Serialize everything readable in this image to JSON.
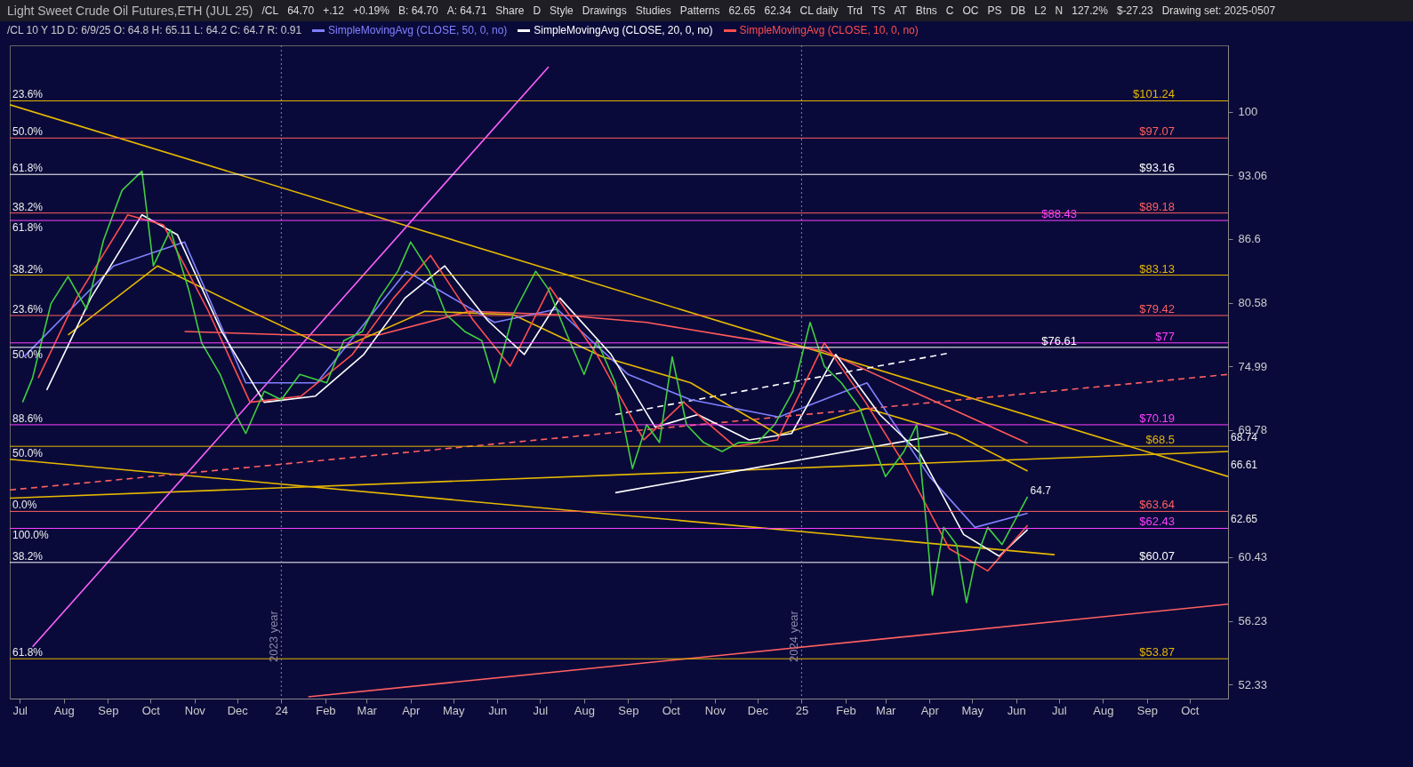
{
  "chart_data": {
    "type": "line",
    "title": "Light Sweet Crude Oil Futures,ETH (JUL 25)",
    "subtitle": "/CL 10 Y 1D D: 6/9/25 O: 64.8 H: 65.11 L: 64.2 C: 64.7 R: 0.91",
    "annotations": [
      "/CL",
      "64.70",
      "+.12",
      "+0.19%",
      "B: 64.70",
      "A: 64.71",
      "Share",
      "D",
      "Style",
      "Drawings",
      "Studies",
      "Patterns",
      "62.65",
      "62.34",
      "CL daily",
      "Trd",
      "TS",
      "AT",
      "Btns",
      "C",
      "OC",
      "PS",
      "DB",
      "L2",
      "N",
      "127.2%",
      "$-27.23",
      "Drawing set: 2025-0507",
      {
        "text": "23.6%",
        "x": "2023-06-24",
        "y": 101.24
      },
      {
        "text": "50.0%",
        "x": "2023-06-24",
        "y": 97.07
      },
      {
        "text": "61.8%",
        "x": "2023-06-24",
        "y": 93.16
      },
      {
        "text": "38.2%",
        "x": "2023-06-24",
        "y": 89.18
      },
      {
        "text": "61.8%",
        "x": "2023-06-24",
        "y": 88.43
      },
      {
        "text": "38.2%",
        "x": "2023-06-24",
        "y": 83.13
      },
      {
        "text": "23.6%",
        "x": "2023-06-24",
        "y": 79.42
      },
      {
        "text": "50.0%",
        "x": "2023-06-24",
        "y": 76.61
      },
      {
        "text": "88.6%",
        "x": "2023-06-24",
        "y": 70.19
      },
      {
        "text": "50.0%",
        "x": "2023-06-24",
        "y": 68.5
      },
      {
        "text": "0.0%",
        "x": "2023-06-24",
        "y": 63.64
      },
      {
        "text": "100.0%",
        "x": "2023-06-24",
        "y": 62.43
      },
      {
        "text": "38.2%",
        "x": "2023-06-24",
        "y": 60.07
      },
      {
        "text": "61.8%",
        "x": "2023-06-24",
        "y": 53.87
      },
      {
        "text": "68.74",
        "x": "2025-10-28",
        "y": 68.74
      },
      {
        "text": "66.61",
        "x": "2025-10-28",
        "y": 66.61
      },
      {
        "text": "64.7",
        "x": "2025-06-09",
        "y": 64.7
      },
      {
        "text": "62.65",
        "x": "2025-10-28",
        "y": 62.65
      }
    ],
    "xlim": [
      "2023-06-24",
      "2025-10-28"
    ],
    "xticks": [
      {
        "value": "2023-07-01",
        "label": "Jul"
      },
      {
        "value": "2023-08-01",
        "label": "Aug"
      },
      {
        "value": "2023-09-01",
        "label": "Sep"
      },
      {
        "value": "2023-10-01",
        "label": "Oct"
      },
      {
        "value": "2023-11-01",
        "label": "Nov"
      },
      {
        "value": "2023-12-01",
        "label": "Dec"
      },
      {
        "value": "2024-01-01",
        "label": "24"
      },
      {
        "value": "2024-02-01",
        "label": "Feb"
      },
      {
        "value": "2024-03-01",
        "label": "Mar"
      },
      {
        "value": "2024-04-01",
        "label": "Apr"
      },
      {
        "value": "2024-05-01",
        "label": "May"
      },
      {
        "value": "2024-06-01",
        "label": "Jun"
      },
      {
        "value": "2024-07-01",
        "label": "Jul"
      },
      {
        "value": "2024-08-01",
        "label": "Aug"
      },
      {
        "value": "2024-09-01",
        "label": "Sep"
      },
      {
        "value": "2024-10-01",
        "label": "Oct"
      },
      {
        "value": "2024-11-01",
        "label": "Nov"
      },
      {
        "value": "2024-12-01",
        "label": "Dec"
      },
      {
        "value": "2025-01-01",
        "label": "25"
      },
      {
        "value": "2025-02-01",
        "label": "Feb"
      },
      {
        "value": "2025-03-01",
        "label": "Mar"
      },
      {
        "value": "2025-04-01",
        "label": "Apr"
      },
      {
        "value": "2025-05-01",
        "label": "May"
      },
      {
        "value": "2025-06-01",
        "label": "Jun"
      },
      {
        "value": "2025-07-01",
        "label": "Jul"
      },
      {
        "value": "2025-08-01",
        "label": "Aug"
      },
      {
        "value": "2025-09-01",
        "label": "Sep"
      },
      {
        "value": "2025-10-01",
        "label": "Oct"
      }
    ],
    "ylim": [
      51.5,
      107.8
    ],
    "yticks": [
      52.33,
      56.23,
      60.43,
      69.78,
      74.99,
      80.58,
      86.6,
      93.06,
      100
    ],
    "log": true,
    "legend": "top",
    "ref_lines": [
      {
        "axis": "y",
        "value": 101.24,
        "label": "$101.24",
        "color": "#e6b800"
      },
      {
        "axis": "y",
        "value": 97.07,
        "label": "$97.07",
        "color": "#ff6060"
      },
      {
        "axis": "y",
        "value": 93.16,
        "label": "$93.16",
        "color": "#ffffff"
      },
      {
        "axis": "y",
        "value": 89.18,
        "label": "$89.18",
        "color": "#ff6060"
      },
      {
        "axis": "y",
        "value": 88.43,
        "label": "$88.43",
        "color": "#ff40ff"
      },
      {
        "axis": "y",
        "value": 83.13,
        "label": "$83.13",
        "color": "#e6b800"
      },
      {
        "axis": "y",
        "value": 79.42,
        "label": "$79.42",
        "color": "#ff6060"
      },
      {
        "axis": "y",
        "value": 77,
        "label": "$77",
        "color": "#ff40ff"
      },
      {
        "axis": "y",
        "value": 76.61,
        "label": "$76.61",
        "color": "#ffffff"
      },
      {
        "axis": "y",
        "value": 70.19,
        "label": "$70.19",
        "color": "#ff40ff"
      },
      {
        "axis": "y",
        "value": 68.5,
        "label": "$68.5",
        "color": "#e6b800"
      },
      {
        "axis": "y",
        "value": 63.64,
        "label": "$63.64",
        "color": "#ff6060"
      },
      {
        "axis": "y",
        "value": 62.43,
        "label": "$62.43",
        "color": "#ff40ff"
      },
      {
        "axis": "y",
        "value": 60.07,
        "label": "$60.07",
        "color": "#ffffff"
      },
      {
        "axis": "y",
        "value": 53.87,
        "label": "$53.87",
        "color": "#e6b800"
      },
      {
        "axis": "x",
        "value": "2024-01-01",
        "label": "2023 year",
        "color": "#8888aa",
        "line_style": "dotted"
      },
      {
        "axis": "x",
        "value": "2025-01-01",
        "label": "2024 year",
        "color": "#8888aa",
        "line_style": "dotted"
      }
    ],
    "series": [
      {
        "color": "#e6b800",
        "x": [
          "2023-06-24",
          "2025-10-28"
        ],
        "values": [
          100.8,
          66.2
        ]
      },
      {
        "color": "#e6b800",
        "x": [
          "2023-06-24",
          "2025-10-28"
        ],
        "values": [
          64.6,
          68.1
        ]
      },
      {
        "color": "#e6b800",
        "x": [
          "2023-06-24",
          "2025-06-28"
        ],
        "values": [
          67.5,
          60.6
        ]
      },
      {
        "color": "#ff60ff",
        "x": [
          "2023-07-10",
          "2024-07-07"
        ],
        "values": [
          54.6,
          105.2
        ]
      },
      {
        "color": "#ffffff",
        "x": [
          "2024-08-23",
          "2025-04-14"
        ],
        "values": [
          65.0,
          69.5
        ]
      },
      {
        "color": "#ffffff",
        "line_style": "dashed",
        "x": [
          "2024-08-23",
          "2025-04-14"
        ],
        "values": [
          71.0,
          76.1
        ]
      },
      {
        "color": "#ff6060",
        "line_style": "dashed",
        "x": [
          "2023-06-24",
          "2025-10-28"
        ],
        "values": [
          65.2,
          74.3
        ]
      },
      {
        "color": "#ff6060",
        "x": [
          "2024-01-20",
          "2025-10-28"
        ],
        "values": [
          51.6,
          57.3
        ]
      },
      {
        "color": "#ff5a5a",
        "x": [
          "2023-10-25",
          "2024-01-06",
          "2024-03-10",
          "2024-05-12",
          "2024-07-13",
          "2024-09-14",
          "2024-11-16",
          "2025-01-17",
          "2025-03-20",
          "2025-06-09"
        ],
        "values": [
          78,
          77.7,
          77.7,
          79.8,
          79.5,
          78.8,
          77.5,
          76.3,
          72.9,
          68.74
        ]
      },
      {
        "color": "#e6b800",
        "x": [
          "2023-08-04",
          "2023-10-06",
          "2023-12-07",
          "2024-02-08",
          "2024-04-11",
          "2024-06-12",
          "2024-08-14",
          "2024-10-15",
          "2024-12-16",
          "2025-02-16",
          "2025-04-20",
          "2025-06-09"
        ],
        "values": [
          77.7,
          84,
          80,
          76.3,
          79.8,
          79.5,
          75.8,
          73.6,
          69.4,
          71.5,
          69.4,
          66.61
        ]
      },
      {
        "name": "SimpleMovingAvg (CLOSE, 50, 0, no)",
        "color": "#8080ff",
        "x": [
          "2023-07-04",
          "2023-09-05",
          "2023-10-25",
          "2023-12-07",
          "2024-01-26",
          "2024-03-29",
          "2024-05-30",
          "2024-07-13",
          "2024-09-01",
          "2024-10-15",
          "2024-12-16",
          "2025-02-16",
          "2025-04-01",
          "2025-05-03",
          "2025-06-09"
        ],
        "values": [
          75.8,
          84,
          86.3,
          73.6,
          73.6,
          83.5,
          78.8,
          80,
          74.3,
          72.2,
          70.8,
          73.6,
          66.2,
          62.5,
          63.5
        ]
      },
      {
        "name": "SimpleMovingAvg (CLOSE, 20, 0, no)",
        "color": "#ffffff",
        "x": [
          "2023-07-20",
          "2023-08-20",
          "2023-09-25",
          "2023-10-20",
          "2023-11-20",
          "2023-12-20",
          "2024-01-25",
          "2024-02-28",
          "2024-03-28",
          "2024-04-25",
          "2024-05-25",
          "2024-06-20",
          "2024-07-15",
          "2024-08-20",
          "2024-09-20",
          "2024-10-20",
          "2024-11-25",
          "2024-12-25",
          "2025-01-25",
          "2025-02-25",
          "2025-03-25",
          "2025-04-25",
          "2025-05-20",
          "2025-06-09"
        ],
        "values": [
          73,
          81,
          89,
          87,
          78,
          72,
          72.5,
          76,
          81,
          84,
          79,
          76,
          81,
          76,
          70,
          71,
          69,
          69.5,
          76,
          71,
          68,
          62,
          60.5,
          62.34
        ]
      },
      {
        "name": "SimpleMovingAvg (CLOSE, 10, 0, no)",
        "color": "#ff4d4d",
        "x": [
          "2023-07-14",
          "2023-08-10",
          "2023-09-15",
          "2023-10-10",
          "2023-11-10",
          "2023-12-10",
          "2024-01-15",
          "2024-02-20",
          "2024-03-20",
          "2024-04-15",
          "2024-05-15",
          "2024-06-10",
          "2024-07-08",
          "2024-08-10",
          "2024-09-12",
          "2024-10-10",
          "2024-11-15",
          "2024-12-15",
          "2025-01-17",
          "2025-02-15",
          "2025-03-15",
          "2025-04-15",
          "2025-05-12",
          "2025-06-09"
        ],
        "values": [
          74,
          81,
          89,
          88,
          80,
          72,
          72.5,
          76,
          81,
          85,
          79,
          75,
          82,
          76,
          69,
          72,
          68.5,
          69,
          77,
          72,
          67,
          61,
          59.5,
          62.65
        ]
      },
      {
        "color": "#3fcf3f",
        "x": [
          "2023-07-03",
          "2023-07-10",
          "2023-07-23",
          "2023-08-04",
          "2023-08-17",
          "2023-08-29",
          "2023-09-11",
          "2023-09-25",
          "2023-10-03",
          "2023-10-15",
          "2023-10-28",
          "2023-11-06",
          "2023-11-19",
          "2023-12-01",
          "2023-12-07",
          "2023-12-20",
          "2024-01-01",
          "2024-01-14",
          "2024-02-02",
          "2024-02-14",
          "2024-02-27",
          "2024-03-10",
          "2024-03-23",
          "2024-04-01",
          "2024-04-14",
          "2024-04-26",
          "2024-05-09",
          "2024-05-21",
          "2024-05-30",
          "2024-06-12",
          "2024-06-28",
          "2024-07-07",
          "2024-07-19",
          "2024-08-01",
          "2024-08-10",
          "2024-08-23",
          "2024-09-04",
          "2024-09-14",
          "2024-09-23",
          "2024-10-02",
          "2024-10-12",
          "2024-10-24",
          "2024-11-06",
          "2024-11-18",
          "2024-12-01",
          "2024-12-13",
          "2024-12-26",
          "2025-01-07",
          "2025-01-17",
          "2025-01-29",
          "2025-02-11",
          "2025-02-20",
          "2025-03-01",
          "2025-03-14",
          "2025-03-23",
          "2025-03-30",
          "2025-04-03",
          "2025-04-11",
          "2025-04-20",
          "2025-04-27",
          "2025-05-03",
          "2025-05-12",
          "2025-05-22",
          "2025-06-09"
        ],
        "values": [
          72,
          74,
          80.5,
          83,
          80,
          86.5,
          91.5,
          93.5,
          84,
          87.5,
          81.7,
          77,
          74.3,
          70.8,
          69.5,
          72.9,
          72.2,
          74.3,
          73.6,
          77.2,
          78,
          81,
          83.5,
          86.3,
          83.5,
          79.5,
          78,
          77.2,
          73.6,
          79.5,
          83.5,
          81.8,
          78,
          74.3,
          77.2,
          73.6,
          66.8,
          70.2,
          68.8,
          75.8,
          70.2,
          68.8,
          68.1,
          68.8,
          68.8,
          70.2,
          72.9,
          78.8,
          75,
          73.6,
          71.5,
          68.8,
          66.2,
          68.1,
          70.2,
          62.5,
          57.9,
          62.5,
          61.3,
          57.4,
          60.1,
          62.5,
          61.3,
          64.7
        ]
      }
    ]
  }
}
